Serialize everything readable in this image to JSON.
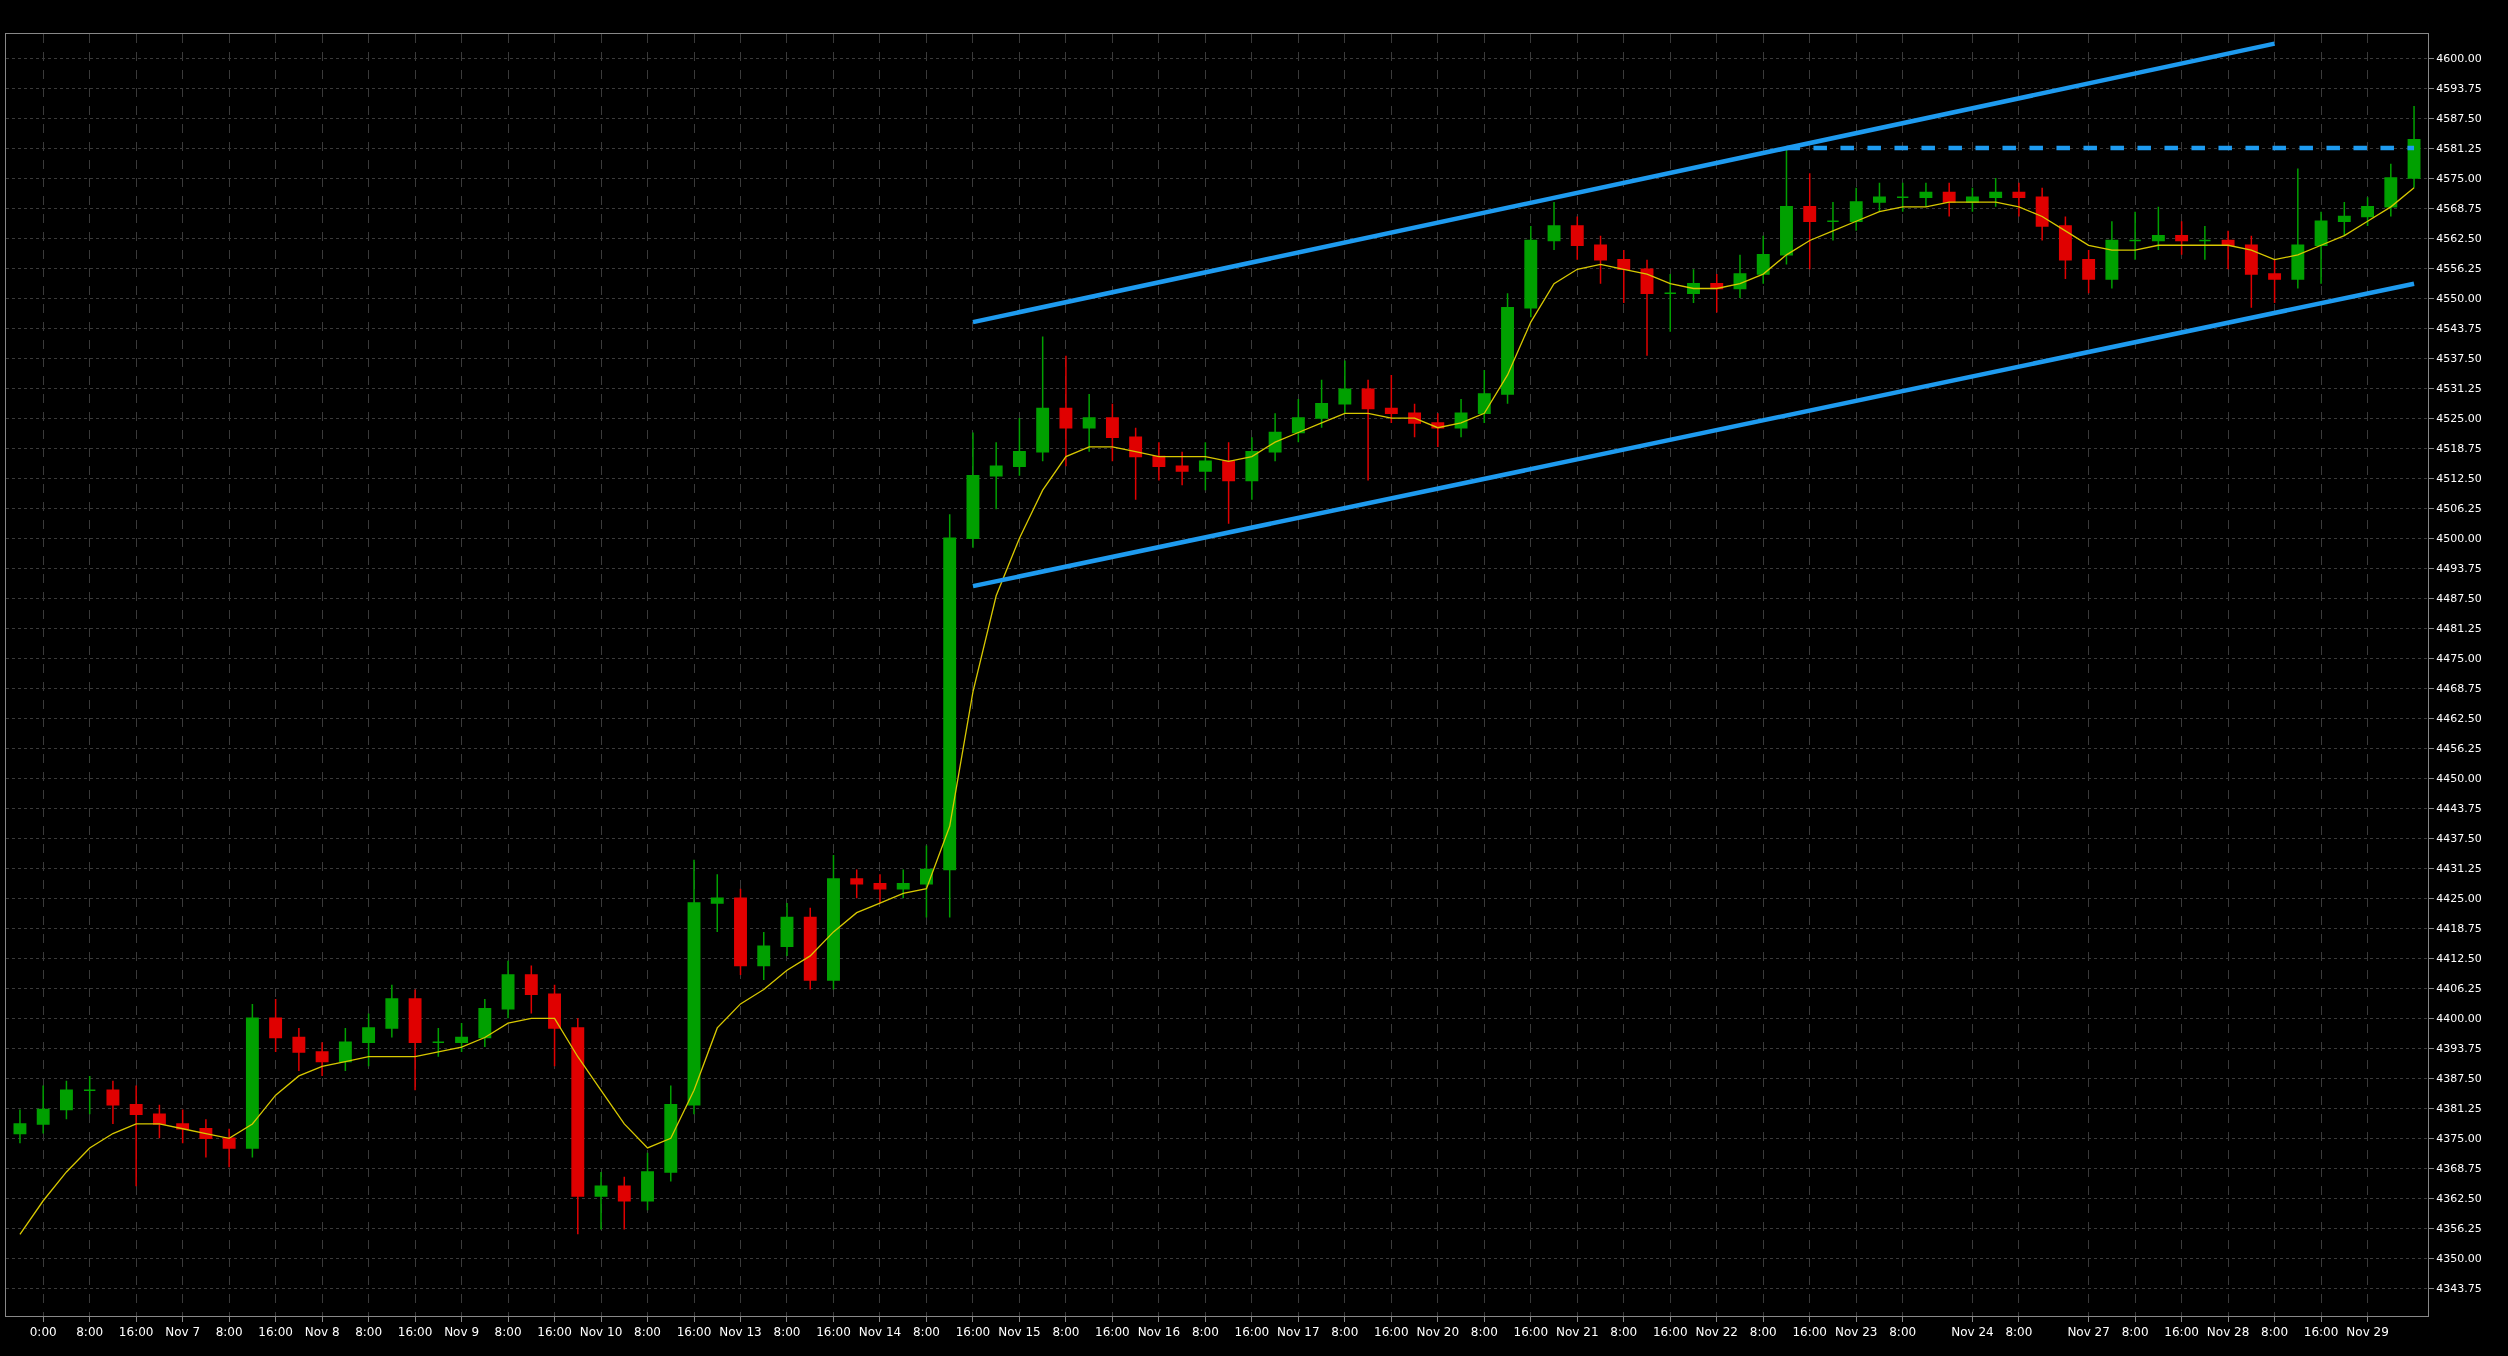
{
  "chart_data": {
    "type": "candlestick",
    "categories": [
      null,
      "0:00",
      null,
      "8:00",
      null,
      "16:00",
      null,
      "Nov 7",
      null,
      "8:00",
      null,
      "16:00",
      null,
      "Nov 8",
      null,
      "8:00",
      null,
      "16:00",
      null,
      "Nov 9",
      null,
      "8:00",
      null,
      "16:00",
      null,
      "Nov 10",
      null,
      "8:00",
      null,
      "16:00",
      null,
      "Nov 13",
      null,
      "8:00",
      null,
      "16:00",
      null,
      "Nov 14",
      null,
      "8:00",
      null,
      "16:00",
      null,
      "Nov 15",
      null,
      "8:00",
      null,
      "16:00",
      null,
      "Nov 16",
      null,
      "8:00",
      null,
      "16:00",
      null,
      "Nov 17",
      null,
      "8:00",
      null,
      "16:00",
      null,
      "Nov 20",
      null,
      "8:00",
      null,
      "16:00",
      null,
      "Nov 21",
      null,
      "8:00",
      null,
      "16:00",
      null,
      "Nov 22",
      null,
      "8:00",
      null,
      "16:00",
      null,
      "Nov 23",
      null,
      "8:00",
      null,
      null,
      "Nov 24",
      null,
      "8:00",
      null,
      null,
      "Nov 27",
      null,
      "8:00",
      null,
      "16:00",
      null,
      "Nov 28",
      null,
      "8:00",
      null,
      "16:00",
      null,
      "Nov 29",
      null,
      null
    ],
    "ohlc": [
      [
        4376,
        4381,
        4374,
        4378
      ],
      [
        4378,
        4386,
        4376,
        4381
      ],
      [
        4381,
        4387,
        4379,
        4385
      ],
      [
        4385,
        4388,
        4380,
        4385
      ],
      [
        4385,
        4387,
        4378,
        4382
      ],
      [
        4382,
        4386,
        4365,
        4380
      ],
      [
        4380,
        4382,
        4375,
        4378
      ],
      [
        4378,
        4381,
        4374,
        4377
      ],
      [
        4377,
        4379,
        4371,
        4375
      ],
      [
        4375,
        4377,
        4369,
        4373
      ],
      [
        4373,
        4403,
        4371,
        4400
      ],
      [
        4400,
        4404,
        4393,
        4396
      ],
      [
        4396,
        4398,
        4389,
        4393
      ],
      [
        4393,
        4395,
        4388,
        4391
      ],
      [
        4391,
        4398,
        4389,
        4395
      ],
      [
        4395,
        4401,
        4390,
        4398
      ],
      [
        4398,
        4407,
        4396,
        4404
      ],
      [
        4404,
        4406,
        4385,
        4395
      ],
      [
        4395,
        4398,
        4392,
        4395
      ],
      [
        4395,
        4399,
        4393,
        4396
      ],
      [
        4396,
        4404,
        4394,
        4402
      ],
      [
        4402,
        4412,
        4400,
        4409
      ],
      [
        4409,
        4411,
        4401,
        4405
      ],
      [
        4405,
        4407,
        4390,
        4398
      ],
      [
        4398,
        4400,
        4355,
        4363
      ],
      [
        4363,
        4368,
        4356,
        4365
      ],
      [
        4365,
        4367,
        4356,
        4362
      ],
      [
        4362,
        4372,
        4360,
        4368
      ],
      [
        4368,
        4386,
        4366,
        4382
      ],
      [
        4382,
        4433,
        4380,
        4424
      ],
      [
        4424,
        4430,
        4418,
        4425
      ],
      [
        4425,
        4427,
        4409,
        4411
      ],
      [
        4411,
        4418,
        4408,
        4415
      ],
      [
        4415,
        4424,
        4413,
        4421
      ],
      [
        4421,
        4423,
        4406,
        4408
      ],
      [
        4408,
        4434,
        4406,
        4429
      ],
      [
        4429,
        4431,
        4425,
        4428
      ],
      [
        4428,
        4430,
        4424,
        4427
      ],
      [
        4427,
        4431,
        4425,
        4428
      ],
      [
        4428,
        4436,
        4421,
        4431
      ],
      [
        4431,
        4505,
        4421,
        4500
      ],
      [
        4500,
        4522,
        4498,
        4513
      ],
      [
        4513,
        4520,
        4506,
        4515
      ],
      [
        4515,
        4525,
        4513,
        4518
      ],
      [
        4518,
        4542,
        4516,
        4527
      ],
      [
        4527,
        4538,
        4515,
        4523
      ],
      [
        4523,
        4530,
        4518,
        4525
      ],
      [
        4525,
        4528,
        4516,
        4521
      ],
      [
        4521,
        4523,
        4508,
        4517
      ],
      [
        4517,
        4520,
        4512,
        4515
      ],
      [
        4515,
        4518,
        4511,
        4514
      ],
      [
        4514,
        4520,
        4510,
        4516
      ],
      [
        4516,
        4520,
        4503,
        4512
      ],
      [
        4512,
        4521,
        4508,
        4518
      ],
      [
        4518,
        4526,
        4516,
        4522
      ],
      [
        4522,
        4529,
        4520,
        4525
      ],
      [
        4525,
        4533,
        4523,
        4528
      ],
      [
        4528,
        4537,
        4526,
        4531
      ],
      [
        4531,
        4533,
        4512,
        4527
      ],
      [
        4527,
        4534,
        4524,
        4526
      ],
      [
        4526,
        4528,
        4521,
        4524
      ],
      [
        4524,
        4526,
        4519,
        4523
      ],
      [
        4523,
        4529,
        4521,
        4526
      ],
      [
        4526,
        4535,
        4524,
        4530
      ],
      [
        4530,
        4551,
        4528,
        4548
      ],
      [
        4548,
        4565,
        4546,
        4562
      ],
      [
        4562,
        4570,
        4560,
        4565
      ],
      [
        4565,
        4567,
        4558,
        4561
      ],
      [
        4561,
        4563,
        4553,
        4558
      ],
      [
        4558,
        4560,
        4549,
        4556
      ],
      [
        4556,
        4558,
        4538,
        4551
      ],
      [
        4551,
        4555,
        4543,
        4551
      ],
      [
        4551,
        4556,
        4549,
        4553
      ],
      [
        4553,
        4555,
        4547,
        4552
      ],
      [
        4552,
        4559,
        4550,
        4555
      ],
      [
        4555,
        4563,
        4553,
        4559
      ],
      [
        4559,
        4581.25,
        4557,
        4569
      ],
      [
        4569,
        4576,
        4556,
        4566
      ],
      [
        4566,
        4570,
        4562,
        4566
      ],
      [
        4566,
        4573,
        4564,
        4570
      ],
      [
        4570,
        4574,
        4568,
        4571
      ],
      [
        4571,
        4574,
        4568,
        4571
      ],
      [
        4571,
        4574,
        4569,
        4572
      ],
      [
        4572,
        4574,
        4567,
        4570
      ],
      [
        4570,
        4573,
        4568,
        4571
      ],
      [
        4571,
        4575,
        4569,
        4572
      ],
      [
        4572,
        4574,
        4567,
        4571
      ],
      [
        4571,
        4573,
        4562,
        4565
      ],
      [
        4565,
        4567,
        4554,
        4558
      ],
      [
        4558,
        4560,
        4551,
        4554
      ],
      [
        4554,
        4566,
        4552,
        4562
      ],
      [
        4562,
        4568,
        4558,
        4562
      ],
      [
        4562,
        4569,
        4560,
        4563
      ],
      [
        4563,
        4566,
        4559,
        4562
      ],
      [
        4562,
        4565,
        4558,
        4562
      ],
      [
        4562,
        4564,
        4556,
        4561
      ],
      [
        4561,
        4563,
        4548,
        4555
      ],
      [
        4555,
        4558,
        4549,
        4554
      ],
      [
        4554,
        4577,
        4552,
        4561
      ],
      [
        4561,
        4568,
        4553,
        4566
      ],
      [
        4566,
        4570,
        4563,
        4567
      ],
      [
        4567,
        4571,
        4565,
        4569
      ],
      [
        4569,
        4578,
        4567,
        4575
      ],
      [
        4575,
        4590,
        4573,
        4583
      ]
    ],
    "colors": [
      "#00a000",
      "#00a000",
      "#00a000",
      "#00a000",
      "#e00000",
      "#e00000",
      "#e00000",
      "#e00000",
      "#e00000",
      "#e00000",
      "#00a000",
      "#e00000",
      "#e00000",
      "#e00000",
      "#00a000",
      "#00a000",
      "#00a000",
      "#e00000",
      "#00a000",
      "#00a000",
      "#00a000",
      "#00a000",
      "#e00000",
      "#e00000",
      "#e00000",
      "#00a000",
      "#e00000",
      "#00a000",
      "#00a000",
      "#00a000",
      "#00a000",
      "#e00000",
      "#00a000",
      "#00a000",
      "#e00000",
      "#00a000",
      "#e00000",
      "#e00000",
      "#00a000",
      "#00a000",
      "#00a000",
      "#00a000",
      "#00a000",
      "#00a000",
      "#00a000",
      "#e00000",
      "#00a000",
      "#e00000",
      "#e00000",
      "#e00000",
      "#e00000",
      "#00a000",
      "#e00000",
      "#00a000",
      "#00a000",
      "#00a000",
      "#00a000",
      "#00a000",
      "#e00000",
      "#e00000",
      "#e00000",
      "#e00000",
      "#00a000",
      "#00a000",
      "#00a000",
      "#00a000",
      "#00a000",
      "#e00000",
      "#e00000",
      "#e00000",
      "#e00000",
      "#00a000",
      "#00a000",
      "#e00000",
      "#00a000",
      "#00a000",
      "#00a000",
      "#e00000",
      "#00a000",
      "#00a000",
      "#00a000",
      "#00a000",
      "#00a000",
      "#e00000",
      "#00a000",
      "#00a000",
      "#e00000",
      "#e00000",
      "#e00000",
      "#e00000",
      "#00a000",
      "#00a000",
      "#00a000",
      "#e00000",
      "#00a000",
      "#e00000",
      "#e00000",
      "#e00000",
      "#00a000",
      "#00a000",
      "#00a000",
      "#00a000",
      "#00a000",
      "#00a000"
    ],
    "series": [
      {
        "type": "line",
        "color": "#d8c800",
        "values": [
          4355,
          4362,
          4368,
          4373,
          4376,
          4378,
          4378,
          4377,
          4376,
          4375,
          4378,
          4384,
          4388,
          4390,
          4391,
          4392,
          4392,
          4392,
          4393,
          4394,
          4396,
          4399,
          4400,
          4400,
          4392,
          4385,
          4378,
          4373,
          4375,
          4385,
          4398,
          4403,
          4406,
          4410,
          4413,
          4418,
          4422,
          4424,
          4426,
          4427,
          4440,
          4468,
          4488,
          4500,
          4510,
          4517,
          4519,
          4519,
          4518,
          4517,
          4517,
          4517,
          4516,
          4517,
          4520,
          4522,
          4524,
          4526,
          4526,
          4525,
          4525,
          4523,
          4524,
          4526,
          4534,
          4545,
          4553,
          4556,
          4557,
          4556,
          4555,
          4553,
          4552,
          4552,
          4553,
          4555,
          4559,
          4562,
          4564,
          4566,
          4568,
          4569,
          4569,
          4570,
          4570,
          4570,
          4569,
          4567,
          4564,
          4561,
          4560,
          4560,
          4561,
          4561,
          4561,
          4561,
          4560,
          4558,
          4559,
          4561,
          4563,
          4566,
          4569,
          4573
        ]
      },
      {
        "type": "line",
        "color": "#1e9bf0",
        "values": [
          null,
          null,
          null,
          null,
          null,
          null,
          null,
          null,
          null,
          null,
          null,
          null,
          null,
          null,
          null,
          null,
          null,
          null,
          null,
          null,
          null,
          null,
          null,
          null,
          null,
          null,
          null,
          null,
          null,
          null,
          null,
          null,
          null,
          null,
          null,
          null,
          null,
          null,
          null,
          null,
          null,
          4545,
          null,
          null,
          null,
          null,
          null,
          null,
          null,
          null,
          null,
          null,
          null,
          null,
          null,
          null,
          null,
          null,
          null,
          null,
          null,
          null,
          null,
          null,
          null,
          null,
          null,
          null,
          null,
          null,
          null,
          null,
          null,
          null,
          null,
          null,
          null,
          null,
          null,
          null,
          null,
          null,
          null,
          null,
          null,
          null,
          null,
          null,
          null,
          null,
          null,
          null,
          null,
          null,
          null,
          null,
          null,
          4603,
          null,
          null,
          null,
          null,
          null,
          null
        ]
      },
      {
        "type": "line",
        "color": "#1e9bf0",
        "values": [
          null,
          null,
          null,
          null,
          null,
          null,
          null,
          null,
          null,
          null,
          null,
          null,
          null,
          null,
          null,
          null,
          null,
          null,
          null,
          null,
          null,
          null,
          null,
          null,
          null,
          null,
          null,
          null,
          null,
          null,
          null,
          null,
          null,
          null,
          null,
          null,
          null,
          null,
          null,
          null,
          null,
          4490,
          null,
          null,
          null,
          null,
          null,
          null,
          null,
          null,
          null,
          null,
          null,
          null,
          null,
          null,
          null,
          null,
          null,
          null,
          null,
          null,
          null,
          null,
          null,
          null,
          null,
          null,
          null,
          null,
          null,
          null,
          null,
          null,
          null,
          null,
          null,
          null,
          null,
          null,
          null,
          null,
          null,
          null,
          null,
          null,
          null,
          null,
          null,
          null,
          null,
          null,
          null,
          null,
          null,
          null,
          null,
          null,
          null,
          null,
          null,
          null,
          null,
          4553
        ]
      },
      {
        "type": "line",
        "color": "#1e9bf0",
        "line_style": "dashed",
        "values": [
          null,
          null,
          null,
          null,
          null,
          null,
          null,
          null,
          null,
          null,
          null,
          null,
          null,
          null,
          null,
          null,
          null,
          null,
          null,
          null,
          null,
          null,
          null,
          null,
          null,
          null,
          null,
          null,
          null,
          null,
          null,
          null,
          null,
          null,
          null,
          null,
          null,
          null,
          null,
          null,
          null,
          null,
          null,
          null,
          null,
          null,
          null,
          null,
          null,
          null,
          null,
          null,
          null,
          null,
          null,
          null,
          null,
          null,
          null,
          null,
          null,
          null,
          null,
          null,
          null,
          null,
          null,
          null,
          null,
          null,
          null,
          null,
          null,
          null,
          null,
          null,
          4581.25,
          null,
          null,
          null,
          null,
          null,
          null,
          null,
          null,
          null,
          null,
          null,
          null,
          null,
          null,
          null,
          null,
          null,
          null,
          null,
          null,
          null,
          null,
          null,
          null,
          null,
          null,
          4581.25
        ]
      }
    ],
    "ylim": [
      4338,
      4605
    ],
    "yticks": [
      {
        "value": 4343.75,
        "label": "4343.75"
      },
      {
        "value": 4350,
        "label": "4350.00"
      },
      {
        "value": 4356.25,
        "label": "4356.25"
      },
      {
        "value": 4362.5,
        "label": "4362.50"
      },
      {
        "value": 4368.75,
        "label": "4368.75"
      },
      {
        "value": 4375,
        "label": "4375.00"
      },
      {
        "value": 4381.25,
        "label": "4381.25"
      },
      {
        "value": 4387.5,
        "label": "4387.50"
      },
      {
        "value": 4393.75,
        "label": "4393.75"
      },
      {
        "value": 4400,
        "label": "4400.00"
      },
      {
        "value": 4406.25,
        "label": "4406.25"
      },
      {
        "value": 4412.5,
        "label": "4412.50"
      },
      {
        "value": 4418.75,
        "label": "4418.75"
      },
      {
        "value": 4425,
        "label": "4425.00"
      },
      {
        "value": 4431.25,
        "label": "4431.25"
      },
      {
        "value": 4437.5,
        "label": "4437.50"
      },
      {
        "value": 4443.75,
        "label": "4443.75"
      },
      {
        "value": 4450,
        "label": "4450.00"
      },
      {
        "value": 4456.25,
        "label": "4456.25"
      },
      {
        "value": 4462.5,
        "label": "4462.50"
      },
      {
        "value": 4468.75,
        "label": "4468.75"
      },
      {
        "value": 4475,
        "label": "4475.00"
      },
      {
        "value": 4481.25,
        "label": "4481.25"
      },
      {
        "value": 4487.5,
        "label": "4487.50"
      },
      {
        "value": 4493.75,
        "label": "4493.75"
      },
      {
        "value": 4500,
        "label": "4500.00"
      },
      {
        "value": 4506.25,
        "label": "4506.25"
      },
      {
        "value": 4512.5,
        "label": "4512.50"
      },
      {
        "value": 4518.75,
        "label": "4518.75"
      },
      {
        "value": 4525,
        "label": "4525.00"
      },
      {
        "value": 4531.25,
        "label": "4531.25"
      },
      {
        "value": 4537.5,
        "label": "4537.50"
      },
      {
        "value": 4543.75,
        "label": "4543.75"
      },
      {
        "value": 4550,
        "label": "4550.00"
      },
      {
        "value": 4556.25,
        "label": "4556.25"
      },
      {
        "value": 4562.5,
        "label": "4562.50"
      },
      {
        "value": 4568.75,
        "label": "4568.75"
      },
      {
        "value": 4575,
        "label": "4575.00"
      },
      {
        "value": 4581.25,
        "label": "4581.25"
      },
      {
        "value": 4587.5,
        "label": "4587.50"
      },
      {
        "value": 4593.75,
        "label": "4593.75"
      },
      {
        "value": 4600,
        "label": "4600.00"
      }
    ],
    "grid": true
  }
}
